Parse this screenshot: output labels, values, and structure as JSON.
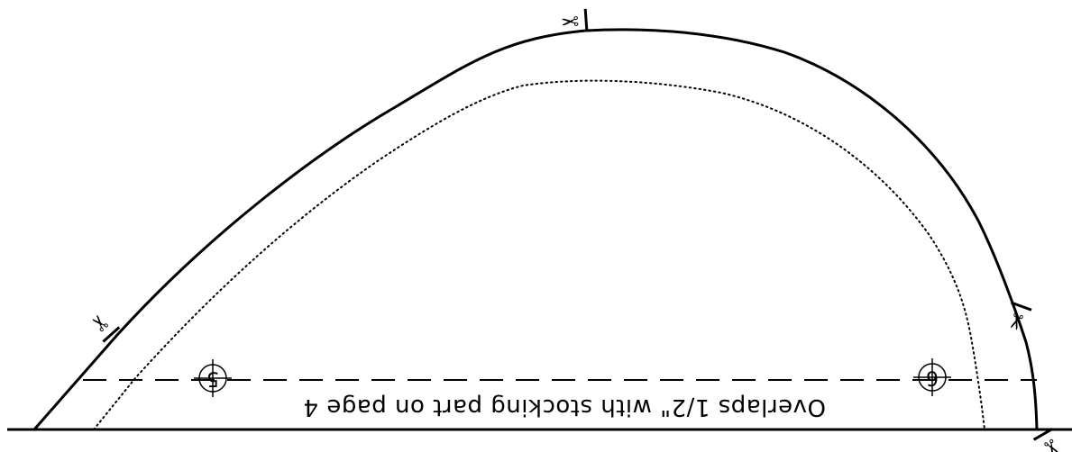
{
  "pattern": {
    "overlap_note": "Overlaps 1/2\" with stocking part on page 4",
    "registration_marks": [
      {
        "label": "5"
      },
      {
        "label": "6"
      }
    ],
    "icons": {
      "scissors": "scissors-icon",
      "scissors_glyph": "✂"
    },
    "colors": {
      "ink": "#000000",
      "paper": "#ffffff"
    },
    "orientation": "upside-down"
  }
}
